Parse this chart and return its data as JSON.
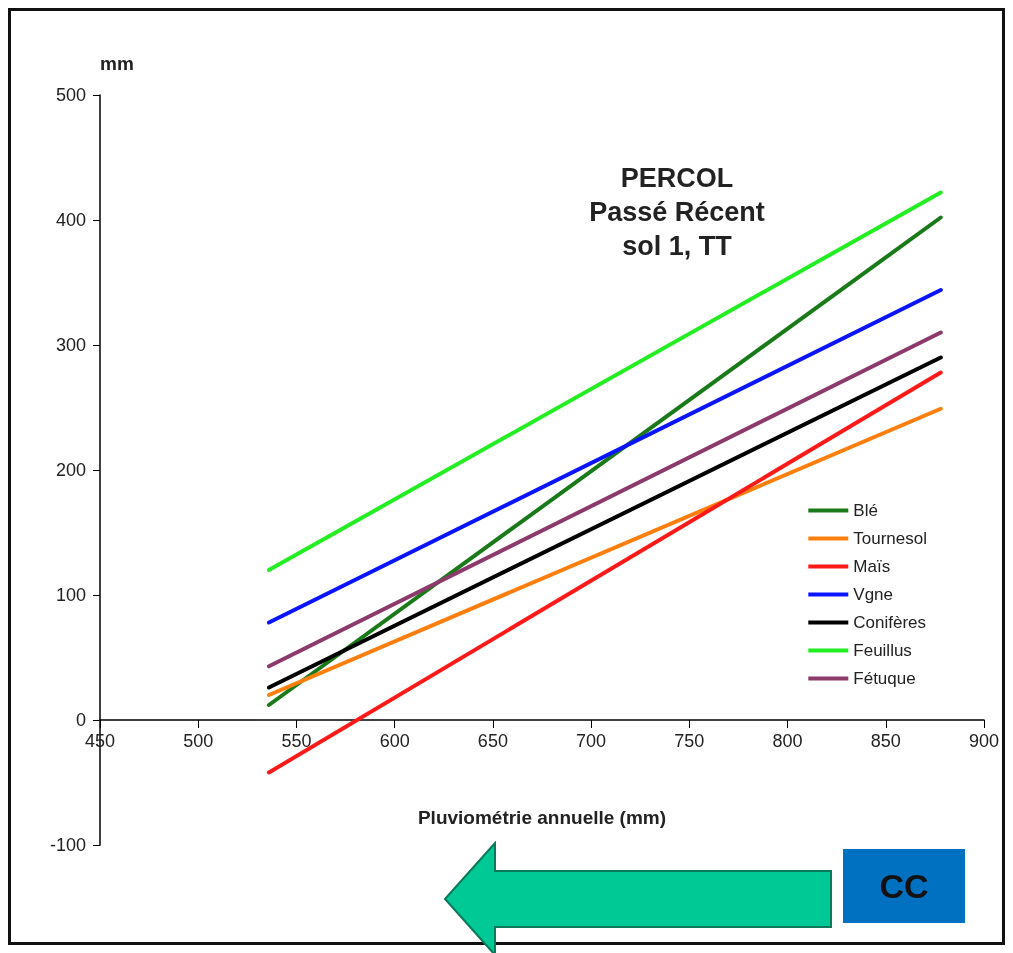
{
  "chart_data": {
    "type": "line",
    "title": "PERCOL\nPassé Récent\nsol 1, TT",
    "xlabel": "Pluviométrie annuelle (mm)",
    "ylabel": "mm",
    "x": [
      536,
      878
    ],
    "series": [
      {
        "name": "Blé",
        "color": "#1a7a1a",
        "values": [
          12,
          402
        ]
      },
      {
        "name": "Tournesol",
        "color": "#ff7f0e",
        "values": [
          20,
          249
        ]
      },
      {
        "name": "Maïs",
        "color": "#ff1a1a",
        "values": [
          -42,
          278
        ]
      },
      {
        "name": "Vgne",
        "color": "#0a14ff",
        "values": [
          78,
          344
        ]
      },
      {
        "name": "Conifères",
        "color": "#000000",
        "values": [
          26,
          290
        ]
      },
      {
        "name": "Feuillus",
        "color": "#22ee22",
        "values": [
          120,
          422
        ]
      },
      {
        "name": "Fétuque",
        "color": "#8b3a6b",
        "values": [
          43,
          310
        ]
      }
    ],
    "xlim": [
      450,
      900
    ],
    "xticks": [
      450,
      500,
      550,
      600,
      650,
      700,
      750,
      800,
      850,
      900
    ],
    "ylim": [
      -100,
      500
    ],
    "yticks": [
      -100,
      0,
      100,
      200,
      300,
      400,
      500
    ],
    "grid": false,
    "legend": "bottom right",
    "marker": "none",
    "line_style": "solid",
    "annotations": [
      "CC"
    ]
  }
}
